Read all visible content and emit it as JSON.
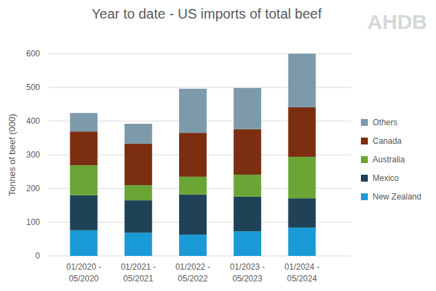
{
  "chart_data": {
    "type": "bar",
    "stacked": true,
    "grid": true,
    "legend": "right",
    "title": "Year to date - US imports of total beef",
    "logo": "AHDB",
    "y_label": "Tonnes of beef (000)",
    "categories": [
      "01/2020 - 05/2020",
      "01/2021 - 05/2021",
      "01/2022 - 05/2022",
      "01/2023 - 05/2023",
      "01/2024 - 05/2024"
    ],
    "series": [
      {
        "name": "New Zealand",
        "color": "#1a9ad6",
        "values": [
          76,
          69,
          63,
          73,
          84
        ]
      },
      {
        "name": "Mexico",
        "color": "#1f4257",
        "values": [
          104,
          96,
          119,
          103,
          87
        ]
      },
      {
        "name": "Australia",
        "color": "#6aa536",
        "values": [
          89,
          45,
          53,
          65,
          123
        ]
      },
      {
        "name": "Canada",
        "color": "#7b2e10",
        "values": [
          100,
          123,
          130,
          135,
          147
        ]
      },
      {
        "name": "Others",
        "color": "#7d9aaa",
        "values": [
          55,
          59,
          131,
          122,
          159
        ]
      }
    ],
    "ylim": [
      0,
      600
    ],
    "yticks": [
      0,
      100,
      200,
      300,
      400,
      500,
      600
    ]
  }
}
